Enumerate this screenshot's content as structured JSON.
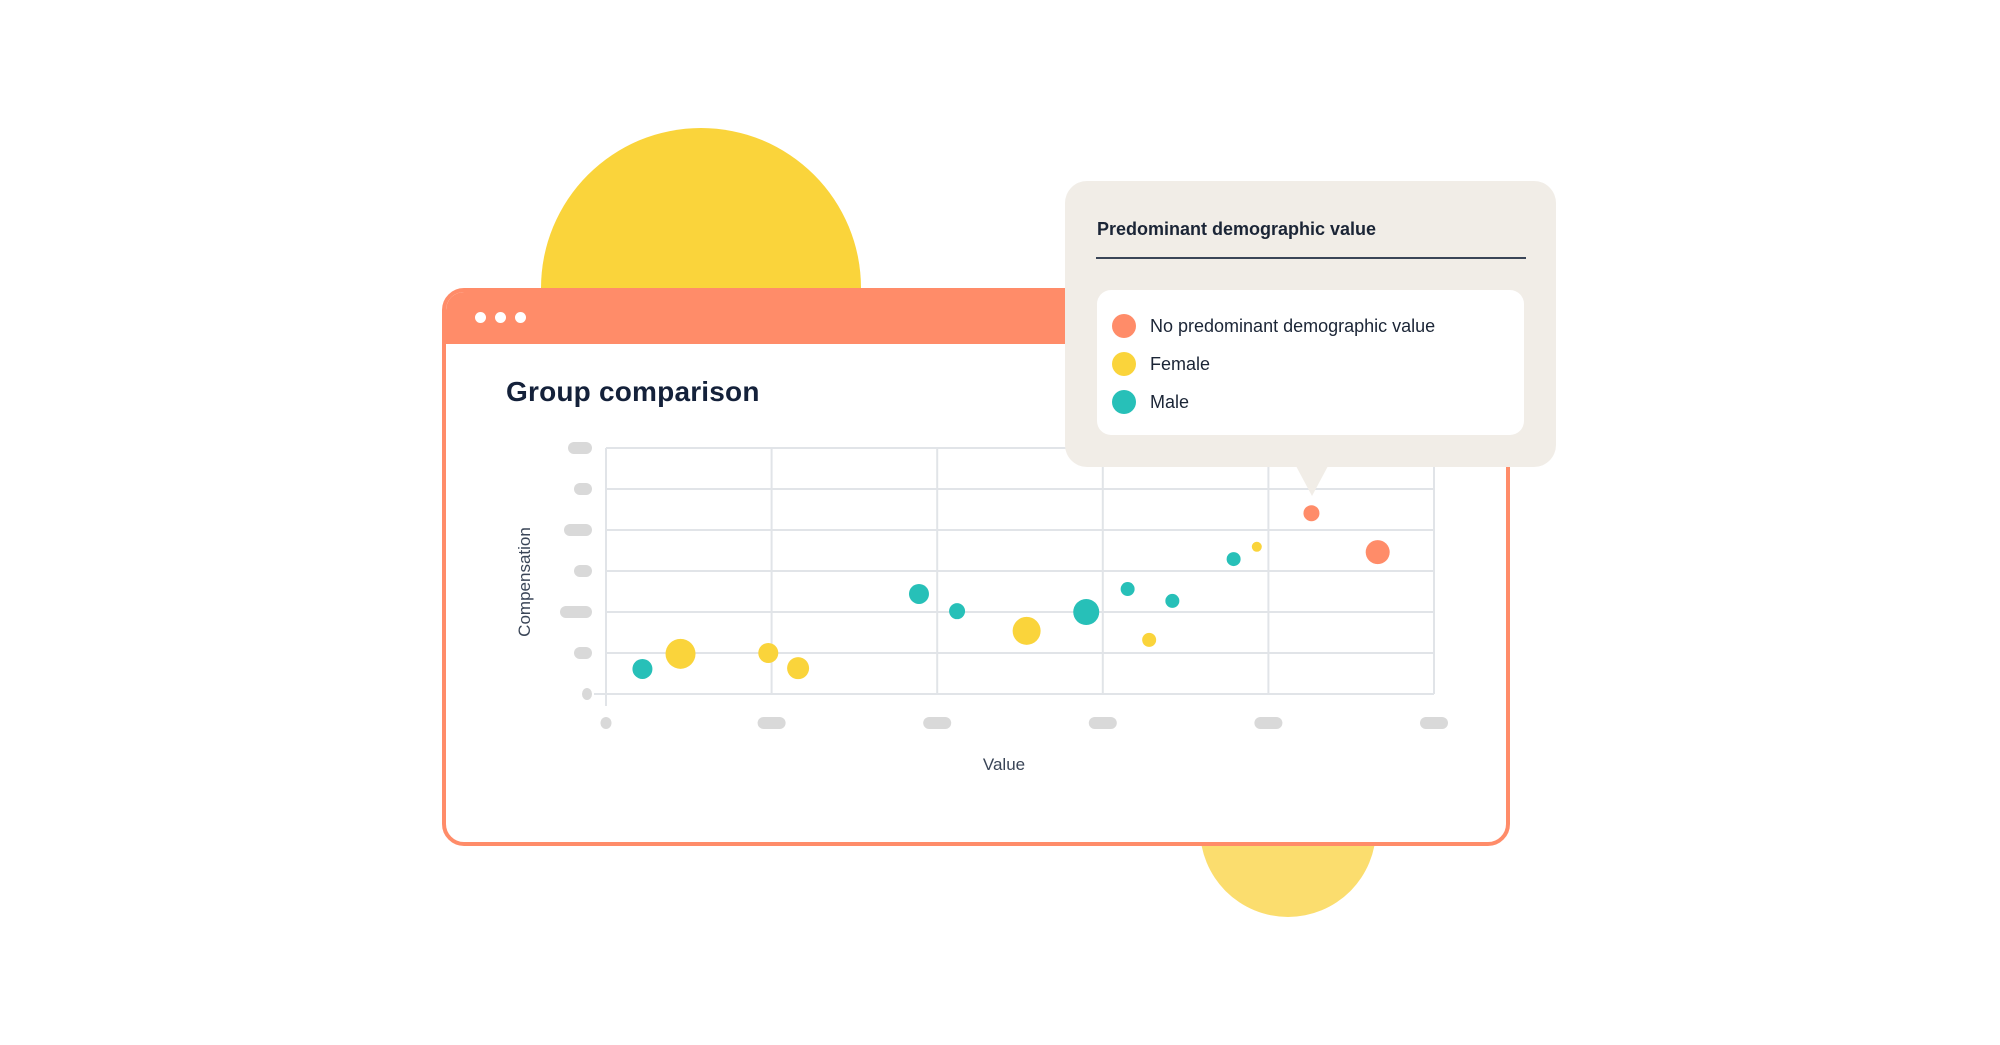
{
  "window": {
    "title": "Group comparison",
    "header_color": "#FF8C69",
    "header_dots": 3
  },
  "tooltip": {
    "title": "Predominant demographic value",
    "legend": [
      {
        "label": "No predominant demographic value",
        "color": "#FF8C69"
      },
      {
        "label": "Female",
        "color": "#FAD43B"
      },
      {
        "label": "Male",
        "color": "#27C0B8"
      }
    ]
  },
  "colors": {
    "accent": "#FF8C69",
    "female": "#FAD43B",
    "male": "#27C0B8",
    "none": "#FF8C69",
    "grid": "#E1E4E8",
    "tick_placeholder": "#D9D9D9",
    "tooltip_bg": "#F1EDE7",
    "text_dark": "#14213A"
  },
  "chart_data": {
    "type": "scatter",
    "title": "Group comparison",
    "xlabel": "Value",
    "ylabel": "Compensation",
    "xlim": [
      0,
      5
    ],
    "ylim": [
      0,
      6
    ],
    "grid": true,
    "x_tick_labels": "placeholder pills (unlabeled)",
    "y_tick_labels": "placeholder pills (unlabeled)",
    "legend_position": "tooltip, top-right",
    "legend": [
      "No predominant demographic value",
      "Female",
      "Male"
    ],
    "series": [
      {
        "name": "Male",
        "color": "#27C0B8",
        "points": [
          {
            "x": 0.22,
            "y": 0.61,
            "size": 10
          },
          {
            "x": 1.89,
            "y": 2.44,
            "size": 10
          },
          {
            "x": 2.12,
            "y": 2.02,
            "size": 8
          },
          {
            "x": 2.9,
            "y": 2.0,
            "size": 13
          },
          {
            "x": 3.15,
            "y": 2.56,
            "size": 7
          },
          {
            "x": 3.42,
            "y": 2.27,
            "size": 7
          },
          {
            "x": 3.79,
            "y": 3.29,
            "size": 7
          }
        ]
      },
      {
        "name": "Female",
        "color": "#FAD43B",
        "points": [
          {
            "x": 0.45,
            "y": 0.98,
            "size": 15
          },
          {
            "x": 0.98,
            "y": 1.0,
            "size": 10
          },
          {
            "x": 1.16,
            "y": 0.63,
            "size": 11
          },
          {
            "x": 2.54,
            "y": 1.54,
            "size": 14
          },
          {
            "x": 3.28,
            "y": 1.32,
            "size": 7
          },
          {
            "x": 3.93,
            "y": 3.59,
            "size": 5
          }
        ]
      },
      {
        "name": "No predominant demographic value",
        "color": "#FF8C69",
        "points": [
          {
            "x": 4.26,
            "y": 4.41,
            "size": 8
          },
          {
            "x": 4.66,
            "y": 3.46,
            "size": 12
          }
        ]
      }
    ],
    "highlighted_point": {
      "series": "No predominant demographic value",
      "x": 4.26,
      "y": 4.41
    }
  }
}
